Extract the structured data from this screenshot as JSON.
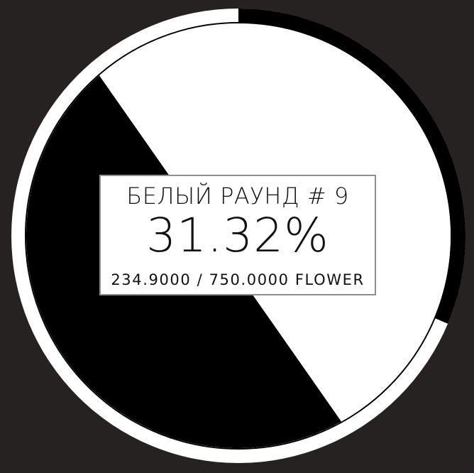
{
  "round": {
    "title": "БЕЛЫЙ РАУНД # 9",
    "percent_text": "31.32%",
    "amounts_text": "234.9000 / 750.0000 FLOWER"
  },
  "progress": {
    "fraction": 0.3132
  },
  "wheel": {
    "black_share": 0.4667,
    "white_share": 0.5333,
    "colors": {
      "background": "#272222",
      "white": "#ffffff",
      "black": "#000000",
      "box_border": "#8f8f8f"
    }
  }
}
